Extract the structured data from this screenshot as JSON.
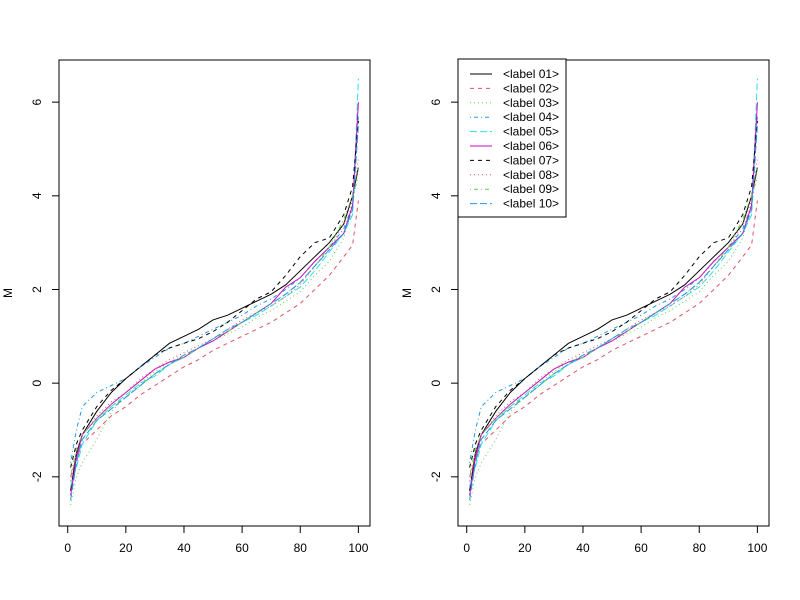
{
  "chart_data": [
    {
      "type": "line",
      "panel": "left",
      "title": "",
      "xlabel": "",
      "ylabel": "M",
      "xlim": [
        -3,
        104
      ],
      "ylim": [
        -3.05,
        6.9
      ],
      "xticks": [
        0,
        20,
        40,
        60,
        80,
        100
      ],
      "yticks": [
        -2,
        0,
        2,
        4,
        6
      ],
      "legend": null
    },
    {
      "type": "line",
      "panel": "right",
      "title": "",
      "xlabel": "",
      "ylabel": "M",
      "xlim": [
        -3,
        104
      ],
      "ylim": [
        -3.05,
        6.9
      ],
      "xticks": [
        0,
        20,
        40,
        60,
        80,
        100
      ],
      "yticks": [
        -2,
        0,
        2,
        4,
        6
      ],
      "legend": "top-left"
    }
  ],
  "x": [
    1,
    3,
    5,
    10,
    15,
    20,
    25,
    30,
    35,
    40,
    45,
    50,
    55,
    60,
    65,
    70,
    75,
    80,
    85,
    90,
    95,
    98,
    100
  ],
  "series": [
    {
      "name": "<label 01>",
      "color": "#000000",
      "lty": "solid",
      "values": [
        -2.3,
        -1.5,
        -1.1,
        -0.6,
        -0.2,
        0.1,
        0.35,
        0.6,
        0.85,
        1.0,
        1.15,
        1.35,
        1.45,
        1.6,
        1.75,
        1.9,
        2.1,
        2.4,
        2.7,
        3.0,
        3.4,
        4.0,
        4.6
      ]
    },
    {
      "name": "<label 02>",
      "color": "#DF536B",
      "lty": "dashed",
      "values": [
        -2.0,
        -1.6,
        -1.3,
        -1.0,
        -0.7,
        -0.5,
        -0.25,
        -0.05,
        0.15,
        0.35,
        0.5,
        0.7,
        0.85,
        1.0,
        1.15,
        1.3,
        1.5,
        1.7,
        2.0,
        2.3,
        2.7,
        2.95,
        3.9
      ]
    },
    {
      "name": "<label 03>",
      "color": "#61D04F",
      "lty": "dotted",
      "values": [
        -2.6,
        -2.0,
        -1.7,
        -1.2,
        -0.6,
        -0.3,
        0.0,
        0.25,
        0.45,
        0.6,
        0.75,
        0.9,
        1.05,
        1.2,
        1.4,
        1.55,
        1.75,
        1.95,
        2.3,
        2.6,
        3.1,
        3.8,
        4.6
      ]
    },
    {
      "name": "<label 04>",
      "color": "#2297E6",
      "lty": "dotdash",
      "values": [
        -1.7,
        -1.0,
        -0.5,
        -0.2,
        -0.05,
        0.1,
        0.35,
        0.55,
        0.75,
        0.85,
        1.0,
        1.15,
        1.3,
        1.45,
        1.65,
        1.8,
        2.0,
        2.25,
        2.6,
        2.9,
        3.3,
        3.8,
        5.7
      ]
    },
    {
      "name": "<label 05>",
      "color": "#28E2E5",
      "lty": "longdash",
      "values": [
        -2.2,
        -1.8,
        -1.3,
        -0.8,
        -0.5,
        -0.25,
        0.0,
        0.15,
        0.4,
        0.55,
        0.75,
        0.95,
        1.1,
        1.3,
        1.45,
        1.65,
        1.85,
        2.05,
        2.4,
        2.8,
        3.2,
        3.6,
        6.5
      ]
    },
    {
      "name": "<label 06>",
      "color": "#CD0BBC",
      "lty": "solid",
      "values": [
        -2.4,
        -1.6,
        -1.1,
        -0.75,
        -0.45,
        -0.2,
        0.05,
        0.3,
        0.45,
        0.55,
        0.75,
        0.9,
        1.1,
        1.3,
        1.5,
        1.7,
        2.05,
        2.25,
        2.6,
        2.9,
        3.2,
        3.8,
        6.0
      ]
    },
    {
      "name": "<label 07>",
      "color": "#000000",
      "lty": "dashed",
      "values": [
        -1.8,
        -1.3,
        -1.0,
        -0.5,
        -0.15,
        0.1,
        0.35,
        0.6,
        0.75,
        0.85,
        0.95,
        1.1,
        1.3,
        1.55,
        1.8,
        1.95,
        2.3,
        2.7,
        3.0,
        3.1,
        3.6,
        4.2,
        5.6
      ]
    },
    {
      "name": "<label 08>",
      "color": "#DF536B",
      "lty": "dotted",
      "values": [
        -2.1,
        -1.5,
        -1.1,
        -0.7,
        -0.4,
        -0.2,
        0.1,
        0.3,
        0.5,
        0.65,
        0.8,
        0.95,
        1.15,
        1.35,
        1.5,
        1.65,
        1.85,
        2.1,
        2.5,
        2.85,
        3.4,
        3.9,
        4.8
      ]
    },
    {
      "name": "<label 09>",
      "color": "#61D04F",
      "lty": "dotdash",
      "values": [
        -2.0,
        -1.4,
        -1.1,
        -0.75,
        -0.5,
        -0.3,
        -0.05,
        0.2,
        0.4,
        0.55,
        0.75,
        0.95,
        1.1,
        1.3,
        1.5,
        1.7,
        1.9,
        2.15,
        2.5,
        2.9,
        3.5,
        4.0,
        4.4
      ]
    },
    {
      "name": "<label 10>",
      "color": "#2297E6",
      "lty": "longdash",
      "values": [
        -2.5,
        -1.7,
        -1.2,
        -0.8,
        -0.55,
        -0.3,
        -0.05,
        0.2,
        0.4,
        0.6,
        0.75,
        0.95,
        1.15,
        1.3,
        1.5,
        1.7,
        1.9,
        2.15,
        2.5,
        2.85,
        3.2,
        3.7,
        5.5
      ]
    }
  ]
}
